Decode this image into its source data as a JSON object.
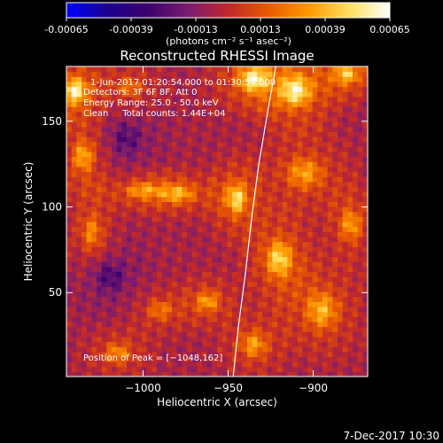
{
  "colorbar": {
    "tick_labels": [
      "-0.00065",
      "-0.00039",
      "-0.00013",
      "0.00013",
      "0.00039",
      "0.00065"
    ],
    "unit_label": "(photons cm⁻² s⁻¹ asec⁻²)",
    "stops": [
      "#0000ff",
      "#1a0090",
      "#3b006b",
      "#7a1c70",
      "#c0282c",
      "#e85a00",
      "#ff9a00",
      "#ffe060",
      "#ffffff"
    ]
  },
  "chart_data": {
    "type": "heatmap",
    "title": "Reconstructed RHESSI Image",
    "xlabel": "Heliocentric X (arcsec)",
    "ylabel": "Heliocentric Y (arcsec)",
    "xlim": [
      -1045,
      -868
    ],
    "ylim": [
      1,
      182
    ],
    "x_ticks": [
      -1000,
      -950,
      -900
    ],
    "x_tick_labels": [
      "−1000",
      "−950",
      "−900"
    ],
    "y_ticks": [
      50,
      100,
      150
    ],
    "y_tick_labels": [
      "50",
      "100",
      "150"
    ],
    "value_range": [
      -0.00065,
      0.00065
    ],
    "grid": false,
    "annotations": [
      "1-Jun-2017 01:20:54.000 to 01:30:54.000",
      "Detectors: 3F 6F 8F, Att 0",
      "Energy Range: 25.0 - 50.0 keV",
      "Clean     Total counts: 1.44E+04"
    ],
    "peak_label": "Position of Peak = [−1048,162]",
    "limb_curve": [
      [
        -947,
        1
      ],
      [
        -944,
        30
      ],
      [
        -940,
        60
      ],
      [
        -936,
        95
      ],
      [
        -932,
        125
      ],
      [
        -926,
        160
      ],
      [
        -922,
        182
      ]
    ],
    "blobs": [
      {
        "x": -1040,
        "y": 168,
        "amp": 0.00065,
        "sx": 9,
        "sy": 10
      },
      {
        "x": -1035,
        "y": 130,
        "amp": 0.00045,
        "sx": 8,
        "sy": 12
      },
      {
        "x": -1030,
        "y": 85,
        "amp": 0.00035,
        "sx": 8,
        "sy": 14
      },
      {
        "x": -1008,
        "y": 170,
        "amp": 0.0003,
        "sx": 10,
        "sy": 8
      },
      {
        "x": -1000,
        "y": 110,
        "amp": 0.00035,
        "sx": 14,
        "sy": 6
      },
      {
        "x": -980,
        "y": 108,
        "amp": 0.0004,
        "sx": 14,
        "sy": 7
      },
      {
        "x": -962,
        "y": 45,
        "amp": 0.0004,
        "sx": 9,
        "sy": 8
      },
      {
        "x": -990,
        "y": 40,
        "amp": 0.0003,
        "sx": 10,
        "sy": 8
      },
      {
        "x": -1015,
        "y": 15,
        "amp": 0.00035,
        "sx": 10,
        "sy": 8
      },
      {
        "x": -945,
        "y": 105,
        "amp": 0.00055,
        "sx": 8,
        "sy": 12
      },
      {
        "x": -935,
        "y": 175,
        "amp": 0.0006,
        "sx": 12,
        "sy": 10
      },
      {
        "x": -910,
        "y": 168,
        "amp": 0.0006,
        "sx": 12,
        "sy": 12
      },
      {
        "x": -880,
        "y": 178,
        "amp": 0.0005,
        "sx": 10,
        "sy": 8
      },
      {
        "x": -905,
        "y": 120,
        "amp": 0.0004,
        "sx": 14,
        "sy": 12
      },
      {
        "x": -920,
        "y": 70,
        "amp": 0.00055,
        "sx": 10,
        "sy": 14
      },
      {
        "x": -895,
        "y": 40,
        "amp": 0.00045,
        "sx": 12,
        "sy": 14
      },
      {
        "x": -878,
        "y": 90,
        "amp": 0.0004,
        "sx": 8,
        "sy": 12
      },
      {
        "x": -935,
        "y": 20,
        "amp": 0.0004,
        "sx": 10,
        "sy": 10
      },
      {
        "x": -1020,
        "y": 60,
        "amp": -0.00025,
        "sx": 12,
        "sy": 12
      },
      {
        "x": -1010,
        "y": 140,
        "amp": -0.0002,
        "sx": 12,
        "sy": 12
      }
    ]
  },
  "footer": {
    "timestamp": "7-Dec-2017 10:30"
  }
}
